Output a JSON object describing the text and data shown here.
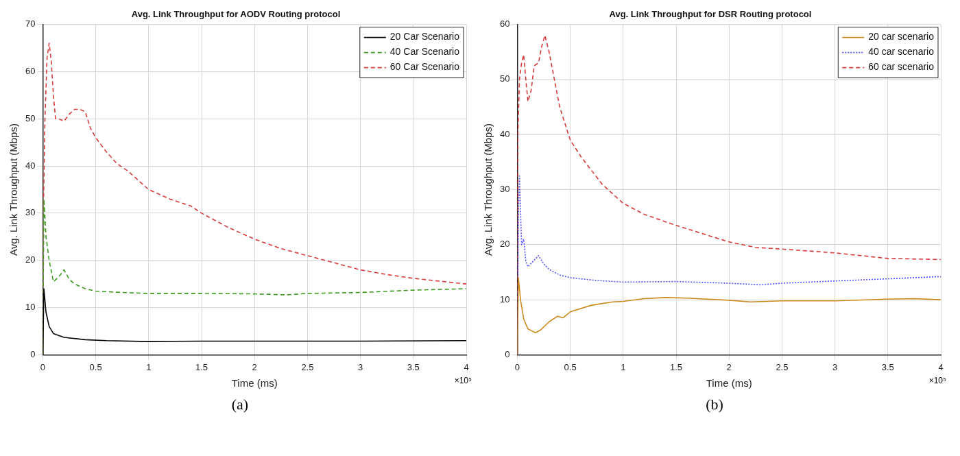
{
  "chart_data": [
    {
      "type": "line",
      "title": "Avg. Link Throughput for AODV Routing protocol",
      "xlabel": "Time (ms)",
      "ylabel": "Avg. Link Throughput (Mbps)",
      "xlim": [
        0,
        4
      ],
      "xticks": [
        0,
        0.5,
        1,
        1.5,
        2,
        2.5,
        3,
        3.5,
        4
      ],
      "ylim": [
        0,
        70
      ],
      "yticks": [
        0,
        10,
        20,
        30,
        40,
        50,
        60,
        70
      ],
      "grid": true,
      "legend": "top right",
      "annotations": [
        "×10⁵",
        "(a)"
      ],
      "series": [
        {
          "name": "20 Car Scenario",
          "color": "#000000",
          "line_style": "solid",
          "x": [
            0,
            0.01,
            0.03,
            0.06,
            0.1,
            0.2,
            0.4,
            0.6,
            1,
            1.5,
            2,
            3,
            4
          ],
          "values": [
            0,
            14,
            9,
            6,
            4.5,
            3.7,
            3.2,
            3,
            2.8,
            2.9,
            2.9,
            2.9,
            3
          ]
        },
        {
          "name": "40 Car Scenario",
          "color": "#3a9a1a",
          "line_style": "dashed",
          "x": [
            0,
            0.01,
            0.03,
            0.06,
            0.1,
            0.15,
            0.2,
            0.25,
            0.3,
            0.4,
            0.5,
            0.75,
            1,
            1.5,
            2,
            2.3,
            2.5,
            3,
            3.5,
            4
          ],
          "values": [
            0,
            33,
            25,
            20,
            15.5,
            16.5,
            18,
            16,
            15,
            14,
            13.5,
            13.2,
            13,
            13,
            12.9,
            12.7,
            13,
            13.2,
            13.7,
            14
          ]
        },
        {
          "name": "60 Car Scenario",
          "color": "#d93a3a",
          "line_style": "dashed",
          "x": [
            0,
            0.005,
            0.02,
            0.04,
            0.06,
            0.08,
            0.1,
            0.12,
            0.15,
            0.2,
            0.25,
            0.3,
            0.35,
            0.4,
            0.45,
            0.5,
            0.6,
            0.7,
            0.8,
            0.9,
            1,
            1.2,
            1.4,
            1.5,
            1.75,
            2,
            2.25,
            2.5,
            2.75,
            3,
            3.25,
            3.5,
            3.75,
            4
          ],
          "values": [
            0,
            30,
            50,
            63,
            66,
            62,
            55,
            50,
            50,
            49.5,
            51,
            52,
            52,
            51.5,
            48,
            46,
            43,
            40.5,
            39,
            37,
            35,
            33,
            31.5,
            30,
            27,
            24.5,
            22.5,
            21,
            19.5,
            18,
            17,
            16.2,
            15.6,
            15
          ]
        }
      ]
    },
    {
      "type": "line",
      "title": "Avg. Link Throughput for DSR Routing protocol",
      "xlabel": "Time (ms)",
      "ylabel": "Avg. Link Throughput (Mbps)",
      "xlim": [
        0,
        4
      ],
      "xticks": [
        0,
        0.5,
        1,
        1.5,
        2,
        2.5,
        3,
        3.5,
        4
      ],
      "ylim": [
        0,
        60
      ],
      "yticks": [
        0,
        10,
        20,
        30,
        40,
        50,
        60
      ],
      "grid": true,
      "legend": "top right",
      "annotations": [
        "×10⁵",
        "(b)"
      ],
      "series": [
        {
          "name": "20 car scenario",
          "color": "#cc8a1a",
          "line_style": "solid",
          "x": [
            0,
            0.01,
            0.03,
            0.06,
            0.1,
            0.17,
            0.22,
            0.3,
            0.38,
            0.43,
            0.5,
            0.7,
            0.9,
            1,
            1.2,
            1.4,
            1.6,
            2,
            2.2,
            2.5,
            3,
            3.5,
            3.75,
            4
          ],
          "values": [
            0,
            14,
            10,
            6.5,
            4.7,
            4,
            4.5,
            6,
            7,
            6.7,
            7.8,
            9,
            9.6,
            9.7,
            10.2,
            10.4,
            10.3,
            9.9,
            9.6,
            9.8,
            9.8,
            10.1,
            10.2,
            10
          ]
        },
        {
          "name": "40 car scenario",
          "color": "#5050ff",
          "line_style": "dotted",
          "x": [
            0,
            0.01,
            0.02,
            0.04,
            0.06,
            0.08,
            0.1,
            0.15,
            0.2,
            0.25,
            0.3,
            0.4,
            0.5,
            0.75,
            1,
            1.5,
            2,
            2.3,
            2.5,
            3,
            3.5,
            4
          ],
          "values": [
            0,
            25,
            32.5,
            20,
            21,
            17,
            16,
            17,
            18,
            16.5,
            15.5,
            14.5,
            14,
            13.5,
            13.2,
            13.3,
            13,
            12.7,
            13,
            13.4,
            13.8,
            14.2
          ]
        },
        {
          "name": "60 car scenario",
          "color": "#d93a3a",
          "line_style": "dashed",
          "x": [
            0,
            0.005,
            0.02,
            0.04,
            0.06,
            0.08,
            0.1,
            0.13,
            0.16,
            0.2,
            0.23,
            0.26,
            0.3,
            0.35,
            0.4,
            0.5,
            0.6,
            0.7,
            0.8,
            1,
            1.2,
            1.5,
            1.75,
            2,
            2.25,
            2.5,
            3,
            3.5,
            4
          ],
          "values": [
            0,
            40,
            50,
            53,
            54.5,
            50,
            46,
            48,
            52.5,
            53,
            56,
            58,
            55,
            50,
            45,
            39,
            36,
            33.5,
            31,
            27.5,
            25.5,
            23.5,
            22,
            20.5,
            19.5,
            19.2,
            18.5,
            17.5,
            17.3
          ]
        }
      ]
    }
  ]
}
